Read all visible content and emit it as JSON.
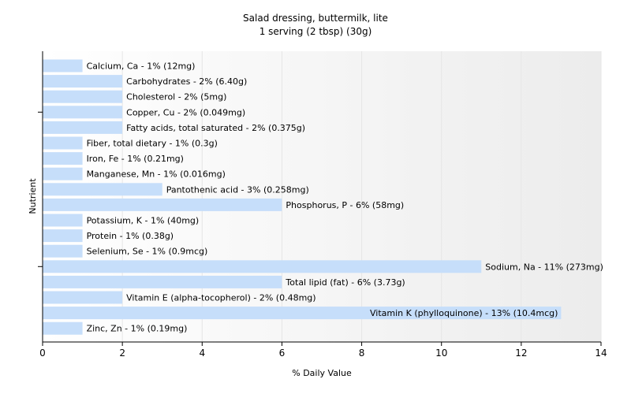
{
  "chart_data": {
    "type": "bar",
    "orientation": "horizontal",
    "title": "Salad dressing, buttermilk, lite",
    "subtitle": "1 serving (2 tbsp) (30g)",
    "xlabel": "% Daily Value",
    "ylabel": "Nutrient",
    "xlim": [
      0,
      14
    ],
    "xticks": [
      "0",
      "2",
      "4",
      "6",
      "8",
      "10",
      "12",
      "14"
    ],
    "grid": "vertical",
    "bar_color": "#c6defa",
    "categories": [
      "Calcium, Ca",
      "Carbohydrates",
      "Cholesterol",
      "Copper, Cu",
      "Fatty acids, total saturated",
      "Fiber, total dietary",
      "Iron, Fe",
      "Manganese, Mn",
      "Pantothenic acid",
      "Phosphorus, P",
      "Potassium, K",
      "Protein",
      "Selenium, Se",
      "Sodium, Na",
      "Total lipid (fat)",
      "Vitamin E (alpha-tocopherol)",
      "Vitamin K (phylloquinone)",
      "Zinc, Zn"
    ],
    "values": [
      1,
      2,
      2,
      2,
      2,
      1,
      1,
      1,
      3,
      6,
      1,
      1,
      1,
      11,
      6,
      2,
      13,
      1
    ],
    "labels": [
      "Calcium, Ca - 1% (12mg)",
      "Carbohydrates - 2% (6.40g)",
      "Cholesterol - 2% (5mg)",
      "Copper, Cu - 2% (0.049mg)",
      "Fatty acids, total saturated - 2% (0.375g)",
      "Fiber, total dietary - 1% (0.3g)",
      "Iron, Fe - 1% (0.21mg)",
      "Manganese, Mn - 1% (0.016mg)",
      "Pantothenic acid - 3% (0.258mg)",
      "Phosphorus, P - 6% (58mg)",
      "Potassium, K - 1% (40mg)",
      "Protein - 1% (0.38g)",
      "Selenium, Se - 1% (0.9mcg)",
      "Sodium, Na - 11% (273mg)",
      "Total lipid (fat) - 6% (3.73g)",
      "Vitamin E (alpha-tocopherol) - 2% (0.48mg)",
      "Vitamin K (phylloquinone) - 13% (10.4mcg)",
      "Zinc, Zn - 1% (0.19mg)"
    ]
  }
}
